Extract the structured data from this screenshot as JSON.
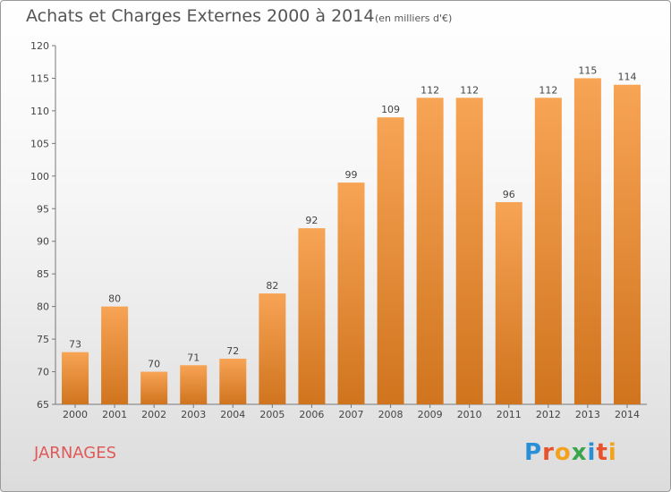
{
  "title": "Achats et Charges Externes 2000 à 2014",
  "subtitle": "(en milliers d'€)",
  "commune": "JARNAGES",
  "logo": "Proxiti",
  "colors": {
    "bar_top": "#f7a455",
    "bar_bottom": "#d0741e",
    "axis": "#555555",
    "commune": "#e05a5a"
  },
  "chart_data": {
    "type": "bar",
    "categories": [
      "2000",
      "2001",
      "2002",
      "2003",
      "2004",
      "2005",
      "2006",
      "2007",
      "2008",
      "2009",
      "2010",
      "2011",
      "2012",
      "2013",
      "2014"
    ],
    "values": [
      73,
      80,
      70,
      71,
      72,
      82,
      92,
      99,
      109,
      112,
      112,
      96,
      112,
      115,
      114
    ],
    "ylim": [
      65,
      120
    ],
    "yticks": [
      65,
      70,
      75,
      80,
      85,
      90,
      95,
      100,
      105,
      110,
      115,
      120
    ],
    "title": "Achats et Charges Externes 2000 à 2014",
    "xlabel": "",
    "ylabel": "",
    "grid": false
  }
}
